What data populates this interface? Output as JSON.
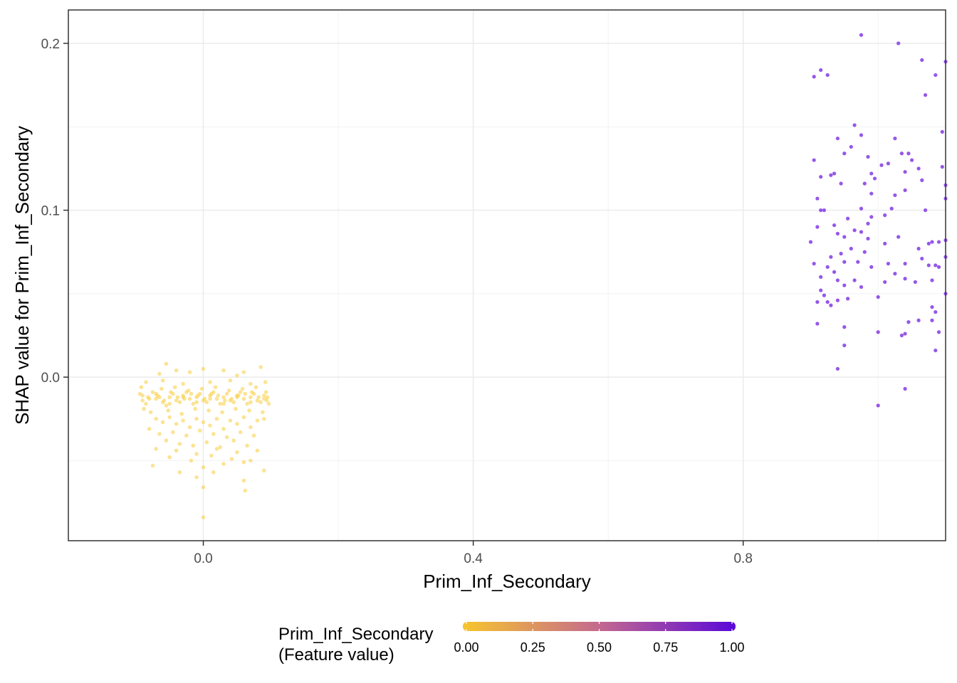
{
  "chart_data": {
    "type": "scatter",
    "xlabel": "Prim_Inf_Secondary",
    "ylabel": "SHAP value for Prim_Inf_Secondary",
    "xlim": [
      -0.2,
      1.1
    ],
    "ylim": [
      -0.098,
      0.22
    ],
    "x_ticks": [
      0.0,
      0.4,
      0.8
    ],
    "x_tick_labels": [
      "0.0",
      "0.4",
      "0.8"
    ],
    "y_ticks": [
      0.0,
      0.1,
      0.2
    ],
    "y_tick_labels": [
      "0.0",
      "0.1",
      "0.2"
    ],
    "grid": true,
    "legend": {
      "position": "bottom",
      "title": [
        "Prim_Inf_Secondary",
        "(Feature value)"
      ],
      "ticks": [
        0.0,
        0.25,
        0.5,
        0.75,
        1.0
      ],
      "tick_labels": [
        "0.00",
        "0.25",
        "0.50",
        "0.75",
        "1.00"
      ],
      "color_low": "#F7C52E",
      "color_mid": "#C4698F",
      "color_high": "#5A08D8"
    },
    "series": [
      {
        "feature_value": 0,
        "color": "#F9CF47",
        "points": [
          [
            -0.09,
            -0.011
          ],
          [
            -0.08,
            -0.013
          ],
          [
            -0.07,
            -0.01
          ],
          [
            -0.06,
            -0.015
          ],
          [
            -0.05,
            -0.012
          ],
          [
            -0.04,
            -0.014
          ],
          [
            -0.03,
            -0.011
          ],
          [
            -0.02,
            -0.013
          ],
          [
            -0.01,
            -0.012
          ],
          [
            0.0,
            -0.014
          ],
          [
            0.01,
            -0.011
          ],
          [
            0.02,
            -0.013
          ],
          [
            0.03,
            -0.012
          ],
          [
            0.04,
            -0.014
          ],
          [
            0.05,
            -0.011
          ],
          [
            0.06,
            -0.013
          ],
          [
            0.07,
            -0.012
          ],
          [
            0.08,
            -0.014
          ],
          [
            0.09,
            -0.011
          ],
          [
            -0.085,
            -0.016
          ],
          [
            -0.075,
            -0.009
          ],
          [
            -0.065,
            -0.012
          ],
          [
            -0.055,
            -0.017
          ],
          [
            -0.045,
            -0.01
          ],
          [
            -0.035,
            -0.015
          ],
          [
            -0.025,
            -0.009
          ],
          [
            -0.015,
            -0.016
          ],
          [
            -0.005,
            -0.01
          ],
          [
            0.005,
            -0.015
          ],
          [
            0.015,
            -0.009
          ],
          [
            0.025,
            -0.016
          ],
          [
            0.035,
            -0.01
          ],
          [
            0.045,
            -0.015
          ],
          [
            0.055,
            -0.009
          ],
          [
            0.065,
            -0.016
          ],
          [
            0.075,
            -0.01
          ],
          [
            0.085,
            -0.015
          ],
          [
            0.095,
            -0.012
          ],
          [
            -0.092,
            -0.006
          ],
          [
            -0.088,
            -0.019
          ],
          [
            -0.078,
            -0.021
          ],
          [
            -0.062,
            -0.007
          ],
          [
            -0.052,
            -0.02
          ],
          [
            -0.042,
            -0.006
          ],
          [
            -0.032,
            -0.022
          ],
          [
            -0.022,
            -0.008
          ],
          [
            -0.012,
            -0.019
          ],
          [
            -0.002,
            -0.007
          ],
          [
            0.008,
            -0.02
          ],
          [
            0.018,
            -0.006
          ],
          [
            0.028,
            -0.021
          ],
          [
            0.038,
            -0.008
          ],
          [
            0.048,
            -0.019
          ],
          [
            0.058,
            -0.007
          ],
          [
            0.068,
            -0.02
          ],
          [
            0.078,
            -0.006
          ],
          [
            0.088,
            -0.021
          ],
          [
            0.093,
            -0.009
          ],
          [
            -0.07,
            -0.025
          ],
          [
            -0.06,
            -0.027
          ],
          [
            -0.05,
            -0.024
          ],
          [
            -0.04,
            -0.028
          ],
          [
            -0.03,
            -0.026
          ],
          [
            -0.02,
            -0.03
          ],
          [
            -0.01,
            -0.025
          ],
          [
            0.0,
            -0.027
          ],
          [
            0.01,
            -0.029
          ],
          [
            0.02,
            -0.025
          ],
          [
            0.03,
            -0.031
          ],
          [
            0.04,
            -0.026
          ],
          [
            0.05,
            -0.028
          ],
          [
            0.06,
            -0.024
          ],
          [
            0.07,
            -0.03
          ],
          [
            0.08,
            -0.026
          ],
          [
            0.09,
            -0.025
          ],
          [
            -0.08,
            -0.031
          ],
          [
            -0.065,
            -0.034
          ],
          [
            -0.045,
            -0.033
          ],
          [
            -0.025,
            -0.035
          ],
          [
            -0.005,
            -0.032
          ],
          [
            0.015,
            -0.034
          ],
          [
            0.035,
            -0.036
          ],
          [
            0.055,
            -0.033
          ],
          [
            0.075,
            -0.035
          ],
          [
            -0.055,
            -0.038
          ],
          [
            -0.035,
            -0.04
          ],
          [
            -0.015,
            -0.041
          ],
          [
            0.005,
            -0.039
          ],
          [
            0.025,
            -0.042
          ],
          [
            0.045,
            -0.038
          ],
          [
            0.065,
            -0.041
          ],
          [
            -0.07,
            -0.043
          ],
          [
            -0.04,
            -0.044
          ],
          [
            -0.01,
            -0.046
          ],
          [
            0.02,
            -0.043
          ],
          [
            0.05,
            -0.045
          ],
          [
            0.08,
            -0.044
          ],
          [
            -0.05,
            -0.048
          ],
          [
            -0.018,
            -0.05
          ],
          [
            0.012,
            -0.047
          ],
          [
            0.042,
            -0.049
          ],
          [
            -0.075,
            -0.053
          ],
          [
            -0.035,
            -0.057
          ],
          [
            0.0,
            -0.054
          ],
          [
            0.03,
            -0.052
          ],
          [
            0.06,
            -0.051
          ],
          [
            0.07,
            -0.05
          ],
          [
            0.09,
            -0.056
          ],
          [
            -0.01,
            -0.06
          ],
          [
            0.06,
            -0.062
          ],
          [
            0.015,
            -0.057
          ],
          [
            0.0,
            -0.066
          ],
          [
            0.062,
            -0.068
          ],
          [
            0.0,
            -0.084
          ],
          [
            -0.065,
            0.002
          ],
          [
            -0.04,
            0.004
          ],
          [
            -0.055,
            0.008
          ],
          [
            0.0,
            0.005
          ],
          [
            0.03,
            0.004
          ],
          [
            0.06,
            0.003
          ],
          [
            0.085,
            0.006
          ],
          [
            0.05,
            0.001
          ],
          [
            -0.02,
            0.003
          ],
          [
            -0.085,
            -0.003
          ],
          [
            -0.06,
            -0.002
          ],
          [
            -0.03,
            -0.004
          ],
          [
            0.01,
            -0.003
          ],
          [
            0.04,
            -0.002
          ],
          [
            0.07,
            -0.004
          ],
          [
            0.092,
            -0.003
          ],
          [
            -0.09,
            -0.014
          ],
          [
            -0.07,
            -0.013
          ],
          [
            -0.05,
            -0.016
          ],
          [
            -0.03,
            -0.012
          ],
          [
            -0.01,
            -0.015
          ],
          [
            0.01,
            -0.013
          ],
          [
            0.03,
            -0.016
          ],
          [
            0.05,
            -0.012
          ],
          [
            0.07,
            -0.015
          ],
          [
            0.09,
            -0.013
          ],
          [
            -0.094,
            -0.01
          ],
          [
            -0.068,
            -0.011
          ],
          [
            -0.048,
            -0.009
          ],
          [
            -0.028,
            -0.013
          ],
          [
            -0.008,
            -0.011
          ],
          [
            0.012,
            -0.01
          ],
          [
            0.032,
            -0.014
          ],
          [
            0.052,
            -0.011
          ],
          [
            0.072,
            -0.009
          ],
          [
            0.094,
            -0.014
          ],
          [
            -0.082,
            -0.012
          ],
          [
            -0.058,
            -0.014
          ],
          [
            -0.038,
            -0.012
          ],
          [
            -0.018,
            -0.01
          ],
          [
            0.002,
            -0.013
          ],
          [
            0.022,
            -0.011
          ],
          [
            0.042,
            -0.013
          ],
          [
            0.062,
            -0.01
          ],
          [
            0.082,
            -0.012
          ],
          [
            0.097,
            -0.016
          ]
        ]
      },
      {
        "feature_value": 1,
        "color": "#8A45E6",
        "points": [
          [
            0.975,
            0.205
          ],
          [
            1.03,
            0.2
          ],
          [
            1.065,
            0.19
          ],
          [
            1.1,
            0.189
          ],
          [
            0.915,
            0.184
          ],
          [
            0.905,
            0.18
          ],
          [
            0.925,
            0.181
          ],
          [
            1.085,
            0.181
          ],
          [
            1.07,
            0.169
          ],
          [
            0.965,
            0.151
          ],
          [
            1.095,
            0.147
          ],
          [
            0.975,
            0.145
          ],
          [
            0.94,
            0.143
          ],
          [
            1.025,
            0.143
          ],
          [
            0.96,
            0.138
          ],
          [
            0.95,
            0.134
          ],
          [
            1.035,
            0.134
          ],
          [
            1.045,
            0.134
          ],
          [
            0.985,
            0.132
          ],
          [
            1.05,
            0.13
          ],
          [
            0.905,
            0.13
          ],
          [
            1.005,
            0.127
          ],
          [
            1.015,
            0.128
          ],
          [
            1.06,
            0.125
          ],
          [
            1.095,
            0.126
          ],
          [
            0.93,
            0.121
          ],
          [
            0.935,
            0.122
          ],
          [
            0.99,
            0.122
          ],
          [
            0.995,
            0.119
          ],
          [
            0.915,
            0.12
          ],
          [
            1.04,
            0.123
          ],
          [
            1.065,
            0.118
          ],
          [
            0.945,
            0.116
          ],
          [
            0.98,
            0.116
          ],
          [
            1.1,
            0.115
          ],
          [
            0.99,
            0.11
          ],
          [
            0.91,
            0.107
          ],
          [
            1.025,
            0.109
          ],
          [
            1.04,
            0.112
          ],
          [
            1.1,
            0.107
          ],
          [
            0.915,
            0.1
          ],
          [
            0.92,
            0.1
          ],
          [
            0.975,
            0.101
          ],
          [
            1.02,
            0.101
          ],
          [
            1.07,
            0.1
          ],
          [
            0.955,
            0.095
          ],
          [
            0.99,
            0.096
          ],
          [
            1.01,
            0.097
          ],
          [
            0.935,
            0.091
          ],
          [
            0.965,
            0.088
          ],
          [
            0.91,
            0.09
          ],
          [
            0.975,
            0.087
          ],
          [
            1.03,
            0.084
          ],
          [
            0.94,
            0.086
          ],
          [
            0.95,
            0.084
          ],
          [
            0.985,
            0.083
          ],
          [
            1.09,
            0.081
          ],
          [
            1.1,
            0.082
          ],
          [
            0.9,
            0.081
          ],
          [
            0.96,
            0.077
          ],
          [
            0.98,
            0.075
          ],
          [
            1.06,
            0.077
          ],
          [
            1.075,
            0.08
          ],
          [
            1.08,
            0.081
          ],
          [
            0.93,
            0.072
          ],
          [
            0.945,
            0.074
          ],
          [
            1.065,
            0.071
          ],
          [
            1.1,
            0.072
          ],
          [
            0.95,
            0.069
          ],
          [
            0.97,
            0.069
          ],
          [
            1.04,
            0.068
          ],
          [
            1.075,
            0.067
          ],
          [
            1.085,
            0.067
          ],
          [
            0.99,
            0.066
          ],
          [
            1.025,
            0.062
          ],
          [
            0.935,
            0.063
          ],
          [
            0.925,
            0.066
          ],
          [
            0.905,
            0.068
          ],
          [
            0.94,
            0.058
          ],
          [
            0.95,
            0.055
          ],
          [
            1.01,
            0.057
          ],
          [
            1.04,
            0.059
          ],
          [
            1.055,
            0.057
          ],
          [
            1.09,
            0.066
          ],
          [
            0.915,
            0.06
          ],
          [
            0.975,
            0.054
          ],
          [
            0.915,
            0.052
          ],
          [
            0.92,
            0.049
          ],
          [
            1.0,
            0.048
          ],
          [
            1.1,
            0.05
          ],
          [
            0.94,
            0.046
          ],
          [
            0.955,
            0.047
          ],
          [
            0.91,
            0.045
          ],
          [
            0.925,
            0.045
          ],
          [
            0.93,
            0.043
          ],
          [
            1.08,
            0.042
          ],
          [
            1.085,
            0.039
          ],
          [
            0.91,
            0.032
          ],
          [
            1.045,
            0.033
          ],
          [
            1.06,
            0.034
          ],
          [
            1.08,
            0.034
          ],
          [
            0.95,
            0.03
          ],
          [
            1.0,
            0.027
          ],
          [
            1.04,
            0.026
          ],
          [
            1.09,
            0.027
          ],
          [
            1.035,
            0.025
          ],
          [
            0.95,
            0.019
          ],
          [
            1.085,
            0.016
          ],
          [
            0.94,
            0.005
          ],
          [
            1.04,
            -0.007
          ],
          [
            1.0,
            -0.017
          ],
          [
            1.01,
            0.08
          ],
          [
            0.985,
            0.092
          ],
          [
            0.965,
            0.058
          ],
          [
            1.015,
            0.068
          ],
          [
            1.08,
            0.058
          ]
        ]
      }
    ]
  }
}
